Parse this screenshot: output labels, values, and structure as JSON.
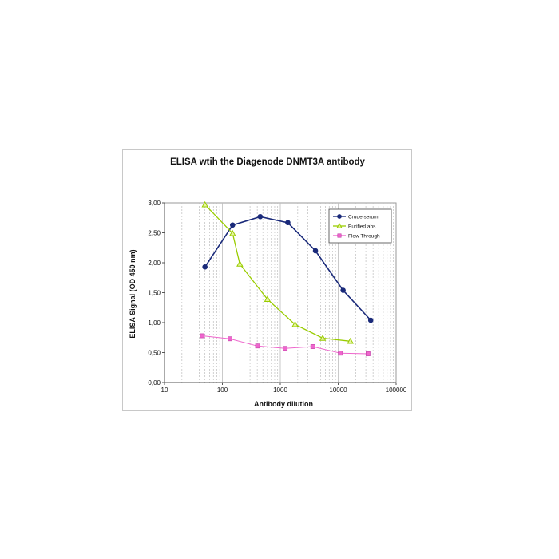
{
  "chart_data": {
    "type": "line",
    "title": "ELISA wtih the Diagenode DNMT3A antibody",
    "xlabel": "Antibody dilution",
    "ylabel": "ELISA Signal (OD 450 nm)",
    "x_scale": "log",
    "xlim": [
      10,
      100000
    ],
    "ylim": [
      0,
      3
    ],
    "x_ticks": [
      10,
      100,
      1000,
      10000,
      100000
    ],
    "x_tick_labels": [
      "10",
      "100",
      "1000",
      "10000",
      "100000"
    ],
    "y_ticks": [
      0,
      0.5,
      1,
      1.5,
      2,
      2.5,
      3
    ],
    "y_tick_labels": [
      "0,00",
      "0,50",
      "1,00",
      "1,50",
      "2,00",
      "2,50",
      "3,00"
    ],
    "grid": "vertical log gridlines (dashed)",
    "legend_position": "top-right",
    "series": [
      {
        "name": "Crude serum",
        "color": "#1a2a7a",
        "marker": "circle",
        "x": [
          50,
          150,
          450,
          1350,
          4050,
          12150,
          36450
        ],
        "y": [
          1.93,
          2.63,
          2.77,
          2.67,
          2.2,
          1.54,
          1.04
        ]
      },
      {
        "name": "Purified abs",
        "color": "#99cc00",
        "marker": "triangle",
        "x": [
          50,
          150,
          200,
          600,
          1800,
          5400,
          16200
        ],
        "y": [
          2.97,
          2.49,
          1.98,
          1.39,
          0.97,
          0.74,
          0.69
        ]
      },
      {
        "name": "Flow Through",
        "color": "#ee66cc",
        "marker": "square",
        "x": [
          45,
          135,
          405,
          1215,
          3645,
          10935,
          32805
        ],
        "y": [
          0.78,
          0.73,
          0.61,
          0.57,
          0.6,
          0.49,
          0.48
        ]
      }
    ]
  }
}
